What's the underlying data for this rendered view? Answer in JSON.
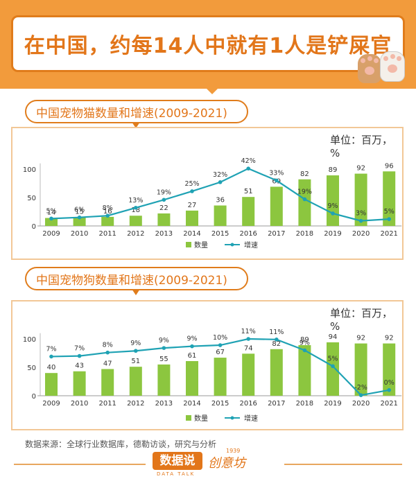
{
  "headline": "在中国，约每14人中就有1人是铲屎官",
  "source_note": "数据来源：全球行业数据库，德勒访谈，研究与分析",
  "brand": {
    "primary": "数据说",
    "primary_sub": "DATA TALK",
    "secondary": "创意坊",
    "secondary_year": "1939"
  },
  "colors": {
    "orange": "#E2761A",
    "bar": "#8CC63F",
    "line": "#1FA2B4"
  },
  "cat_section": {
    "title": "中国宠物猫数量和增速(2009-2021)",
    "unit": "单位：百万，%"
  },
  "dog_section": {
    "title": "中国宠物狗数量和增速(2009-2021)",
    "unit": "单位：百万，%"
  },
  "chart_data": [
    {
      "type": "bar",
      "categories": [
        "2009",
        "2010",
        "2011",
        "2012",
        "2013",
        "2014",
        "2015",
        "2016",
        "2017",
        "2018",
        "2019",
        "2020",
        "2021"
      ],
      "series": [
        {
          "name": "数量",
          "type": "bar",
          "values": [
            14,
            15,
            16,
            18,
            22,
            27,
            36,
            51,
            69,
            82,
            89,
            92,
            96
          ]
        },
        {
          "name": "增速",
          "type": "line",
          "labels": [
            "5%",
            "6%",
            "8%",
            "13%",
            "19%",
            "25%",
            "32%",
            "42%",
            "33%",
            "19%",
            "9%",
            "3%",
            "5%"
          ],
          "values": [
            13,
            15,
            18,
            32,
            46,
            61,
            77,
            101,
            80,
            47,
            22,
            9,
            12
          ]
        }
      ],
      "yticks": [
        0,
        50,
        100
      ],
      "ylim": [
        0,
        110
      ]
    },
    {
      "type": "bar",
      "categories": [
        "2009",
        "2010",
        "2011",
        "2012",
        "2013",
        "2014",
        "2015",
        "2016",
        "2017",
        "2018",
        "2019",
        "2020",
        "2021"
      ],
      "series": [
        {
          "name": "数量",
          "type": "bar",
          "values": [
            40,
            43,
            47,
            51,
            55,
            61,
            67,
            74,
            82,
            89,
            94,
            92,
            92
          ]
        },
        {
          "name": "增速",
          "type": "line",
          "labels": [
            "7%",
            "7%",
            "8%",
            "9%",
            "9%",
            "9%",
            "10%",
            "11%",
            "11%",
            "9%",
            "5%",
            "-2%",
            "0%"
          ],
          "values": [
            69,
            70,
            76,
            79,
            84,
            87,
            89,
            100,
            99,
            80,
            52,
            1,
            10
          ]
        }
      ],
      "yticks": [
        0,
        50,
        100
      ],
      "ylim": [
        0,
        110
      ]
    }
  ]
}
